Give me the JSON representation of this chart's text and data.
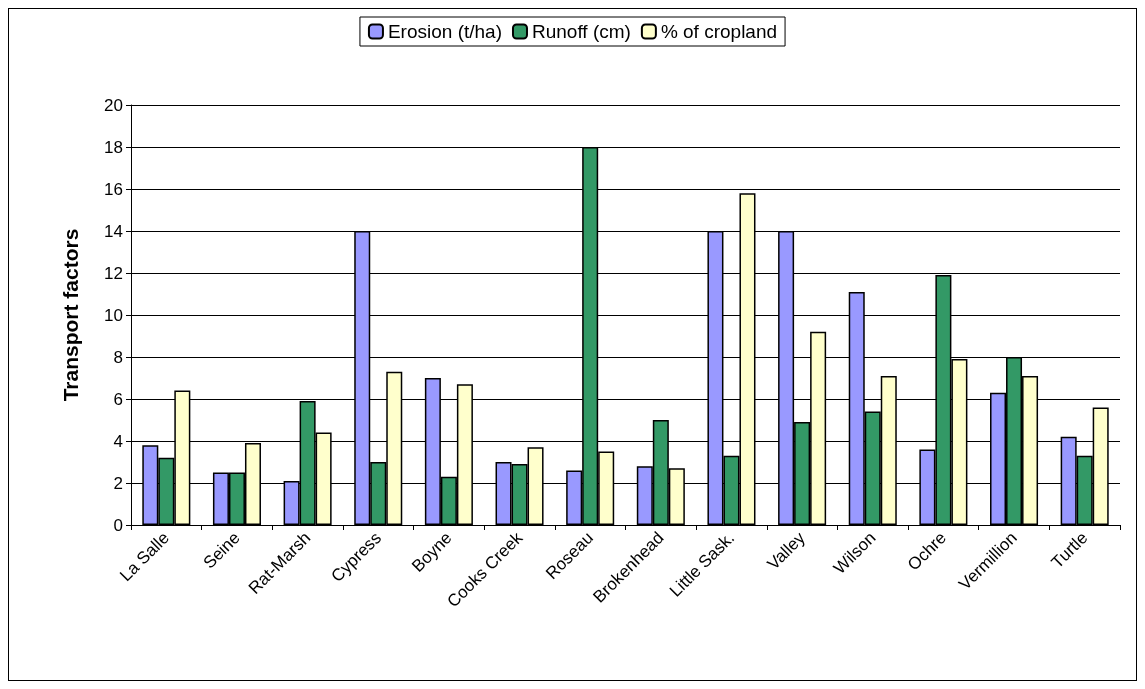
{
  "chart_data": {
    "type": "bar",
    "ylabel": "Transport factors",
    "categories": [
      "La Salle",
      "Seine",
      "Rat-Marsh",
      "Cypress",
      "Boyne",
      "Cooks Creek",
      "Roseau",
      "Brokenhead",
      "Little Sask.",
      "Valley",
      "Wilson",
      "Ochre",
      "Vermillion",
      "Turtle"
    ],
    "series": [
      {
        "name": "Erosion (t/ha)",
        "color": "#9999ff",
        "values": [
          3.8,
          2.5,
          2.1,
          14,
          7.0,
          3.0,
          2.6,
          2.8,
          14,
          14,
          11.1,
          3.6,
          6.3,
          4.2
        ]
      },
      {
        "name": "Runoff (cm)",
        "color": "#339966",
        "values": [
          3.2,
          2.5,
          5.9,
          3.0,
          2.3,
          2.9,
          18,
          5.0,
          3.3,
          4.9,
          5.4,
          11.9,
          8.0,
          3.3
        ]
      },
      {
        "name": "% of cropland",
        "color": "#ffffcc",
        "values": [
          6.4,
          3.9,
          4.4,
          7.3,
          6.7,
          3.7,
          3.5,
          2.7,
          15.8,
          9.2,
          7.1,
          7.9,
          7.1,
          5.6
        ]
      }
    ],
    "ylim": [
      0,
      20
    ],
    "yticks": [
      0,
      2,
      4,
      6,
      8,
      10,
      12,
      14,
      16,
      18,
      20
    ],
    "grid": "y",
    "legend": "top"
  }
}
